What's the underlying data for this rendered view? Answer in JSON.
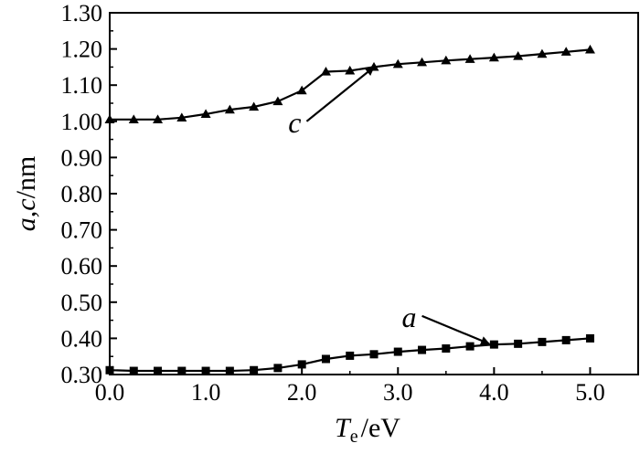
{
  "chart_data": {
    "type": "line",
    "x": [
      0.0,
      0.25,
      0.5,
      0.75,
      1.0,
      1.25,
      1.5,
      1.75,
      2.0,
      2.25,
      2.5,
      2.75,
      3.0,
      3.25,
      3.5,
      3.75,
      4.0,
      4.25,
      4.5,
      4.75,
      5.0
    ],
    "series": [
      {
        "name": "c",
        "marker": "triangle",
        "values": [
          1.005,
          1.005,
          1.005,
          1.01,
          1.02,
          1.032,
          1.04,
          1.055,
          1.085,
          1.137,
          1.14,
          1.15,
          1.158,
          1.163,
          1.168,
          1.172,
          1.176,
          1.18,
          1.186,
          1.192,
          1.198
        ]
      },
      {
        "name": "a",
        "marker": "square",
        "values": [
          0.312,
          0.31,
          0.31,
          0.31,
          0.31,
          0.31,
          0.312,
          0.318,
          0.328,
          0.343,
          0.352,
          0.356,
          0.363,
          0.368,
          0.372,
          0.378,
          0.383,
          0.385,
          0.39,
          0.395,
          0.4
        ]
      }
    ],
    "xlim": [
      0.0,
      5.5
    ],
    "ylim": [
      0.3,
      1.3
    ],
    "xticks": [
      0.0,
      1.0,
      2.0,
      3.0,
      4.0,
      5.0
    ],
    "xtick_labels": [
      "0.0",
      "1.0",
      "2.0",
      "3.0",
      "4.0",
      "5.0"
    ],
    "yticks": [
      0.3,
      0.4,
      0.5,
      0.6,
      0.7,
      0.8,
      0.9,
      1.0,
      1.1,
      1.2,
      1.3
    ],
    "ytick_labels": [
      "0.30",
      "0.40",
      "0.50",
      "0.60",
      "0.70",
      "0.80",
      "0.90",
      "1.00",
      "1.10",
      "1.20",
      "1.30"
    ],
    "xlabel": {
      "symbol": "T",
      "subscript": "e",
      "unit": "/eV"
    },
    "ylabel": {
      "vars": "a,c",
      "unit": "/nm"
    },
    "annotations": [
      {
        "text": "c",
        "point_x": 2.75,
        "point_y": 1.15,
        "label_x": 2.05,
        "label_y": 1.0
      },
      {
        "text": "a",
        "point_x": 3.95,
        "point_y": 0.385,
        "label_x": 3.25,
        "label_y": 0.462
      }
    ],
    "grid": false
  }
}
